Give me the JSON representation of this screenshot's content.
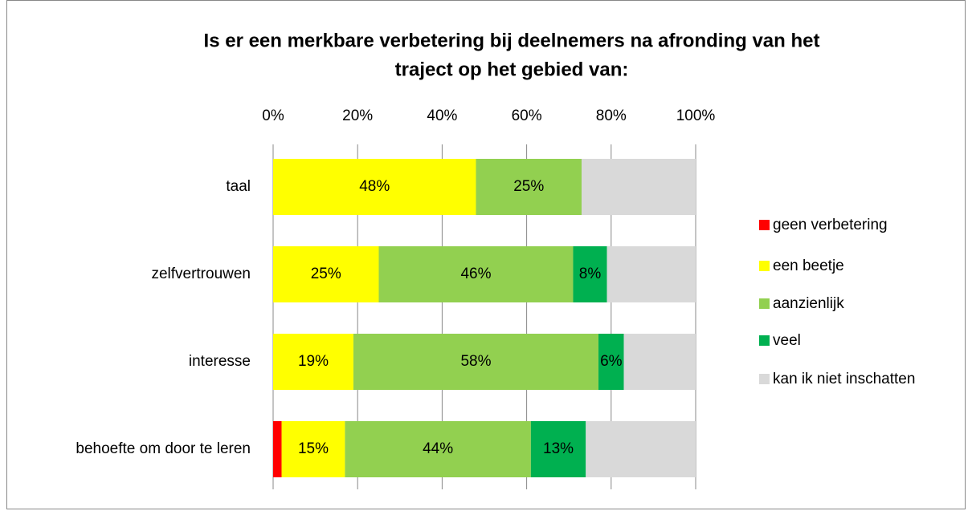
{
  "chart_data": {
    "type": "stacked_barh",
    "title": [
      "Is er een merkbare verbetering bij deelnemers na afronding van het",
      "traject op het gebied van:"
    ],
    "categories": [
      "taal",
      "zelfvertrouwen",
      "interesse",
      "behoefte om door te leren"
    ],
    "series": [
      {
        "name": "geen verbetering",
        "color": "#ff0000",
        "values": [
          0,
          0,
          0,
          2
        ],
        "value_labels": [
          null,
          null,
          null,
          null
        ]
      },
      {
        "name": "een beetje",
        "color": "#ffff00",
        "values": [
          48,
          25,
          19,
          15
        ],
        "value_labels": [
          "48%",
          "25%",
          "19%",
          "15%"
        ]
      },
      {
        "name": "aanzienlijk",
        "color": "#92d050",
        "values": [
          25,
          46,
          58,
          44
        ],
        "value_labels": [
          "25%",
          "46%",
          "58%",
          "44%"
        ]
      },
      {
        "name": "veel",
        "color": "#00b050",
        "values": [
          0,
          8,
          6,
          13
        ],
        "value_labels": [
          null,
          "8%",
          "6%",
          "13%"
        ]
      },
      {
        "name": "kan ik niet inschatten",
        "color": "#d9d9d9",
        "values": [
          27,
          21,
          17,
          26
        ],
        "value_labels": [
          null,
          null,
          null,
          null
        ]
      }
    ],
    "xlim": [
      0,
      100
    ],
    "xticks": [
      {
        "value": 0,
        "label": "0%"
      },
      {
        "value": 20,
        "label": "20%"
      },
      {
        "value": 40,
        "label": "40%"
      },
      {
        "value": 60,
        "label": "60%"
      },
      {
        "value": 80,
        "label": "80%"
      },
      {
        "value": 100,
        "label": "100%"
      }
    ],
    "grid": true,
    "legend": "right"
  }
}
